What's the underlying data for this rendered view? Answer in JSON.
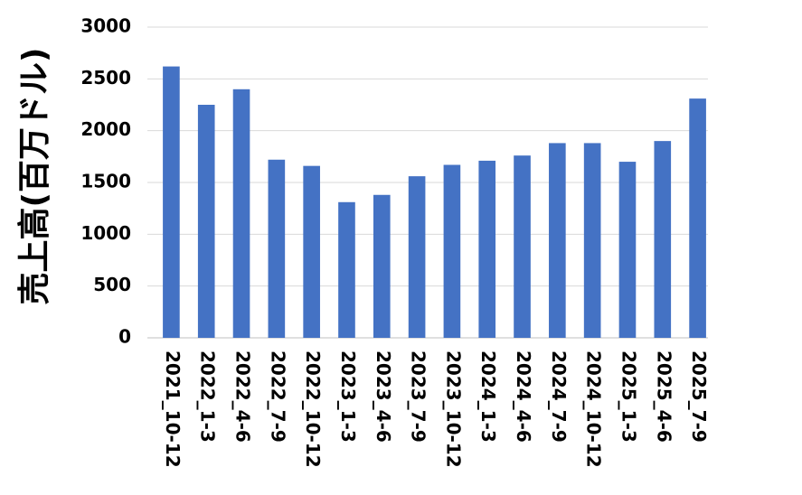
{
  "chart_data": {
    "type": "bar",
    "y_label": "売上高(百万ドル)",
    "categories": [
      "2021_10-12",
      "2022_1-3",
      "2022_4-6",
      "2022_7-9",
      "2022_10-12",
      "2023_1-3",
      "2023_4-6",
      "2023_7-9",
      "2023_10-12",
      "2024_1-3",
      "2024_4-6",
      "2024_7-9",
      "2024_10-12",
      "2025_1-3",
      "2025_4-6",
      "2025_7-9"
    ],
    "values": [
      2620,
      2250,
      2400,
      1720,
      1660,
      1310,
      1380,
      1560,
      1670,
      1710,
      1760,
      1880,
      1880,
      1700,
      1900,
      2310
    ],
    "color": "#4472c4",
    "ylim": [
      0,
      3000
    ],
    "yticks": [
      0,
      500,
      1000,
      1500,
      2000,
      2500,
      3000
    ],
    "grid": true
  }
}
